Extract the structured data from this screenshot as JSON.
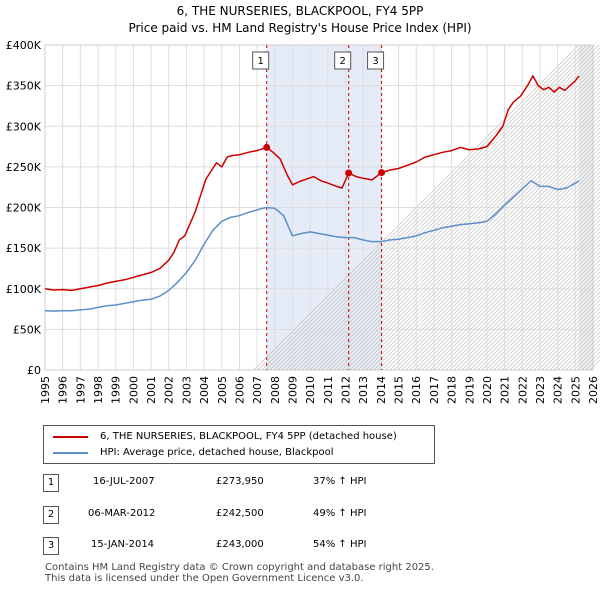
{
  "header": {
    "title_line1": "6, THE NURSERIES, BLACKPOOL, FY4 5PP",
    "title_line2": "Price paid vs. HM Land Registry's House Price Index (HPI)"
  },
  "chart_data": {
    "type": "line",
    "title": "6, THE NURSERIES, BLACKPOOL, FY4 5PP — Price paid vs. HM Land Registry's House Price Index (HPI)",
    "xlim": [
      1995,
      2026
    ],
    "ylim": [
      0,
      400000
    ],
    "x_ticks": [
      1995,
      1996,
      1997,
      1998,
      1999,
      2000,
      2001,
      2002,
      2003,
      2004,
      2005,
      2006,
      2007,
      2008,
      2009,
      2010,
      2011,
      2012,
      2013,
      2014,
      2015,
      2016,
      2017,
      2018,
      2019,
      2020,
      2021,
      2022,
      2023,
      2024,
      2025,
      2026
    ],
    "y_ticks": [
      0,
      50000,
      100000,
      150000,
      200000,
      250000,
      300000,
      350000,
      400000
    ],
    "y_tick_labels": [
      "£0",
      "£50K",
      "£100K",
      "£150K",
      "£200K",
      "£250K",
      "£300K",
      "£350K",
      "£400K"
    ],
    "colors": {
      "property": "#cc0000",
      "hpi": "#5b8fc9",
      "shade": "#e6ecf7",
      "marker_line": "#cc0000",
      "grid": "#dddddd"
    },
    "shaded_ranges": [
      [
        2007.54,
        2014.04
      ]
    ],
    "projection_start": 2025.2,
    "series": [
      {
        "name": "6, THE NURSERIES, BLACKPOOL, FY4 5PP (detached house)",
        "color": "#cc0000",
        "points": [
          [
            1995.0,
            100000
          ],
          [
            1995.5,
            98500
          ],
          [
            1996.0,
            99000
          ],
          [
            1996.5,
            98000
          ],
          [
            1997.0,
            100000
          ],
          [
            1997.5,
            102000
          ],
          [
            1998.0,
            104000
          ],
          [
            1998.5,
            107000
          ],
          [
            1999.0,
            109000
          ],
          [
            1999.5,
            111000
          ],
          [
            2000.0,
            114000
          ],
          [
            2000.5,
            117000
          ],
          [
            2001.0,
            120000
          ],
          [
            2001.5,
            125000
          ],
          [
            2002.0,
            135000
          ],
          [
            2002.3,
            145000
          ],
          [
            2002.6,
            160000
          ],
          [
            2002.9,
            165000
          ],
          [
            2003.2,
            180000
          ],
          [
            2003.5,
            195000
          ],
          [
            2003.8,
            215000
          ],
          [
            2004.1,
            235000
          ],
          [
            2004.4,
            245000
          ],
          [
            2004.7,
            255000
          ],
          [
            2005.0,
            250000
          ],
          [
            2005.3,
            262000
          ],
          [
            2005.6,
            264000
          ],
          [
            2006.0,
            265000
          ],
          [
            2006.5,
            268000
          ],
          [
            2007.0,
            270000
          ],
          [
            2007.54,
            273950
          ],
          [
            2007.9,
            268000
          ],
          [
            2008.3,
            260000
          ],
          [
            2008.7,
            240000
          ],
          [
            2009.0,
            228000
          ],
          [
            2009.4,
            232000
          ],
          [
            2009.8,
            235000
          ],
          [
            2010.2,
            238000
          ],
          [
            2010.6,
            233000
          ],
          [
            2011.0,
            230000
          ],
          [
            2011.5,
            226000
          ],
          [
            2011.8,
            224000
          ],
          [
            2012.18,
            242500
          ],
          [
            2012.6,
            238000
          ],
          [
            2013.0,
            236000
          ],
          [
            2013.5,
            234000
          ],
          [
            2014.04,
            243000
          ],
          [
            2014.5,
            246000
          ],
          [
            2015.0,
            248000
          ],
          [
            2015.5,
            252000
          ],
          [
            2016.0,
            256000
          ],
          [
            2016.5,
            262000
          ],
          [
            2017.0,
            265000
          ],
          [
            2017.5,
            268000
          ],
          [
            2018.0,
            270000
          ],
          [
            2018.5,
            274000
          ],
          [
            2019.0,
            271000
          ],
          [
            2019.5,
            272000
          ],
          [
            2020.0,
            275000
          ],
          [
            2020.5,
            288000
          ],
          [
            2020.9,
            300000
          ],
          [
            2021.2,
            320000
          ],
          [
            2021.5,
            330000
          ],
          [
            2021.9,
            337000
          ],
          [
            2022.3,
            350000
          ],
          [
            2022.6,
            362000
          ],
          [
            2022.9,
            350000
          ],
          [
            2023.2,
            345000
          ],
          [
            2023.5,
            348000
          ],
          [
            2023.8,
            342000
          ],
          [
            2024.1,
            348000
          ],
          [
            2024.4,
            344000
          ],
          [
            2024.7,
            350000
          ],
          [
            2025.0,
            356000
          ],
          [
            2025.2,
            362000
          ]
        ]
      },
      {
        "name": "HPI: Average price, detached house, Blackpool",
        "color": "#5b8fc9",
        "points": [
          [
            1995.0,
            73000
          ],
          [
            1995.5,
            72500
          ],
          [
            1996.0,
            73000
          ],
          [
            1996.5,
            73000
          ],
          [
            1997.0,
            74000
          ],
          [
            1997.5,
            75000
          ],
          [
            1998.0,
            77000
          ],
          [
            1998.5,
            79000
          ],
          [
            1999.0,
            80000
          ],
          [
            1999.5,
            82000
          ],
          [
            2000.0,
            84000
          ],
          [
            2000.5,
            86000
          ],
          [
            2001.0,
            87000
          ],
          [
            2001.5,
            91000
          ],
          [
            2002.0,
            98000
          ],
          [
            2002.5,
            108000
          ],
          [
            2003.0,
            120000
          ],
          [
            2003.5,
            135000
          ],
          [
            2004.0,
            155000
          ],
          [
            2004.5,
            172000
          ],
          [
            2005.0,
            183000
          ],
          [
            2005.5,
            188000
          ],
          [
            2006.0,
            190000
          ],
          [
            2006.5,
            194000
          ],
          [
            2007.0,
            197000
          ],
          [
            2007.5,
            200000
          ],
          [
            2008.0,
            199000
          ],
          [
            2008.5,
            190000
          ],
          [
            2009.0,
            165000
          ],
          [
            2009.5,
            168000
          ],
          [
            2010.0,
            170000
          ],
          [
            2010.5,
            168000
          ],
          [
            2011.0,
            166000
          ],
          [
            2011.5,
            164000
          ],
          [
            2012.0,
            163000
          ],
          [
            2012.5,
            163000
          ],
          [
            2013.0,
            160000
          ],
          [
            2013.5,
            158000
          ],
          [
            2014.0,
            158000
          ],
          [
            2014.5,
            160000
          ],
          [
            2015.0,
            161000
          ],
          [
            2015.5,
            163000
          ],
          [
            2016.0,
            165000
          ],
          [
            2016.5,
            169000
          ],
          [
            2017.0,
            172000
          ],
          [
            2017.5,
            175000
          ],
          [
            2018.0,
            177000
          ],
          [
            2018.5,
            179000
          ],
          [
            2019.0,
            180000
          ],
          [
            2019.5,
            181000
          ],
          [
            2020.0,
            183000
          ],
          [
            2020.5,
            192000
          ],
          [
            2021.0,
            203000
          ],
          [
            2021.5,
            213000
          ],
          [
            2022.0,
            223000
          ],
          [
            2022.5,
            233000
          ],
          [
            2023.0,
            226000
          ],
          [
            2023.5,
            226000
          ],
          [
            2024.0,
            222000
          ],
          [
            2024.5,
            224000
          ],
          [
            2025.0,
            230000
          ],
          [
            2025.2,
            233000
          ]
        ]
      }
    ],
    "markers": [
      {
        "label": "1",
        "x": 2007.54,
        "y": 273950
      },
      {
        "label": "2",
        "x": 2012.18,
        "y": 242500
      },
      {
        "label": "3",
        "x": 2014.04,
        "y": 243000
      }
    ]
  },
  "legend": {
    "items": [
      {
        "label": "6, THE NURSERIES, BLACKPOOL, FY4 5PP (detached house)",
        "color": "#cc0000"
      },
      {
        "label": "HPI: Average price, detached house, Blackpool",
        "color": "#5b8fc9"
      }
    ]
  },
  "transactions": [
    {
      "num": "1",
      "date": "16-JUL-2007",
      "price": "£273,950",
      "change": "37% ↑ HPI"
    },
    {
      "num": "2",
      "date": "06-MAR-2012",
      "price": "£242,500",
      "change": "49% ↑ HPI"
    },
    {
      "num": "3",
      "date": "15-JAN-2014",
      "price": "£243,000",
      "change": "54% ↑ HPI"
    }
  ],
  "footer": {
    "line1": "Contains HM Land Registry data © Crown copyright and database right 2025.",
    "line2": "This data is licensed under the Open Government Licence v3.0."
  }
}
